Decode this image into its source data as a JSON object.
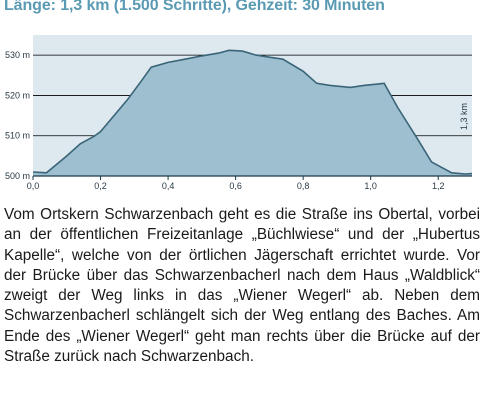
{
  "heading": "Länge: 1,3 km (1.500 Schritte), Gehzeit: 30 Minuten",
  "chart_data": {
    "type": "area",
    "xlim": [
      0,
      1.3
    ],
    "ylim": [
      500,
      535
    ],
    "x_ticks": [
      0.0,
      0.2,
      0.4,
      0.6,
      0.8,
      1.0,
      1.2
    ],
    "x_tick_labels": [
      "0,0",
      "0,2",
      "0,4",
      "0,6",
      "0,8",
      "1,0",
      "1,2"
    ],
    "y_ticks": [
      500,
      510,
      520,
      530
    ],
    "y_tick_labels": [
      "500 m",
      "510 m",
      "520 m",
      "530 m"
    ],
    "side_label": "1,3 km",
    "grid": true,
    "colors": {
      "fill": "#9dbfcf",
      "line": "#3a6478",
      "background": "#dde8ef",
      "grid": "#000000"
    },
    "x": [
      0.0,
      0.04,
      0.06,
      0.1,
      0.14,
      0.18,
      0.2,
      0.24,
      0.28,
      0.32,
      0.35,
      0.4,
      0.45,
      0.5,
      0.55,
      0.58,
      0.62,
      0.66,
      0.7,
      0.74,
      0.8,
      0.84,
      0.88,
      0.94,
      0.98,
      1.04,
      1.08,
      1.14,
      1.18,
      1.24,
      1.28,
      1.3
    ],
    "y": [
      501.0,
      500.8,
      502.2,
      505.0,
      508.0,
      509.8,
      511.0,
      515.0,
      519.0,
      523.5,
      527.0,
      528.2,
      529.0,
      529.8,
      530.5,
      531.2,
      531.0,
      530.0,
      529.5,
      529.0,
      526.0,
      523.0,
      522.5,
      522.0,
      522.5,
      523.0,
      517.0,
      509.0,
      503.5,
      500.8,
      500.5,
      500.6
    ]
  },
  "description": "Vom Ortskern Schwarzenbach geht es die Straße ins Obertal, vorbei an der öffentlichen Freizeitanlage „Büchlwiese“ und der „Hubertus Kapelle“, welche von der örtlichen Jägerschaft errichtet wurde. Vor der Brücke über das Schwarzenbacherl nach dem Haus „Waldblick“ zweigt der Weg links in das „Wiener Wegerl“ ab. Neben dem Schwarzenbacherl schlängelt sich der Weg entlang des Baches. Am Ende des „Wiener Wegerl“ geht man rechts über die Brücke auf der Straße zurück nach Schwarzenbach."
}
